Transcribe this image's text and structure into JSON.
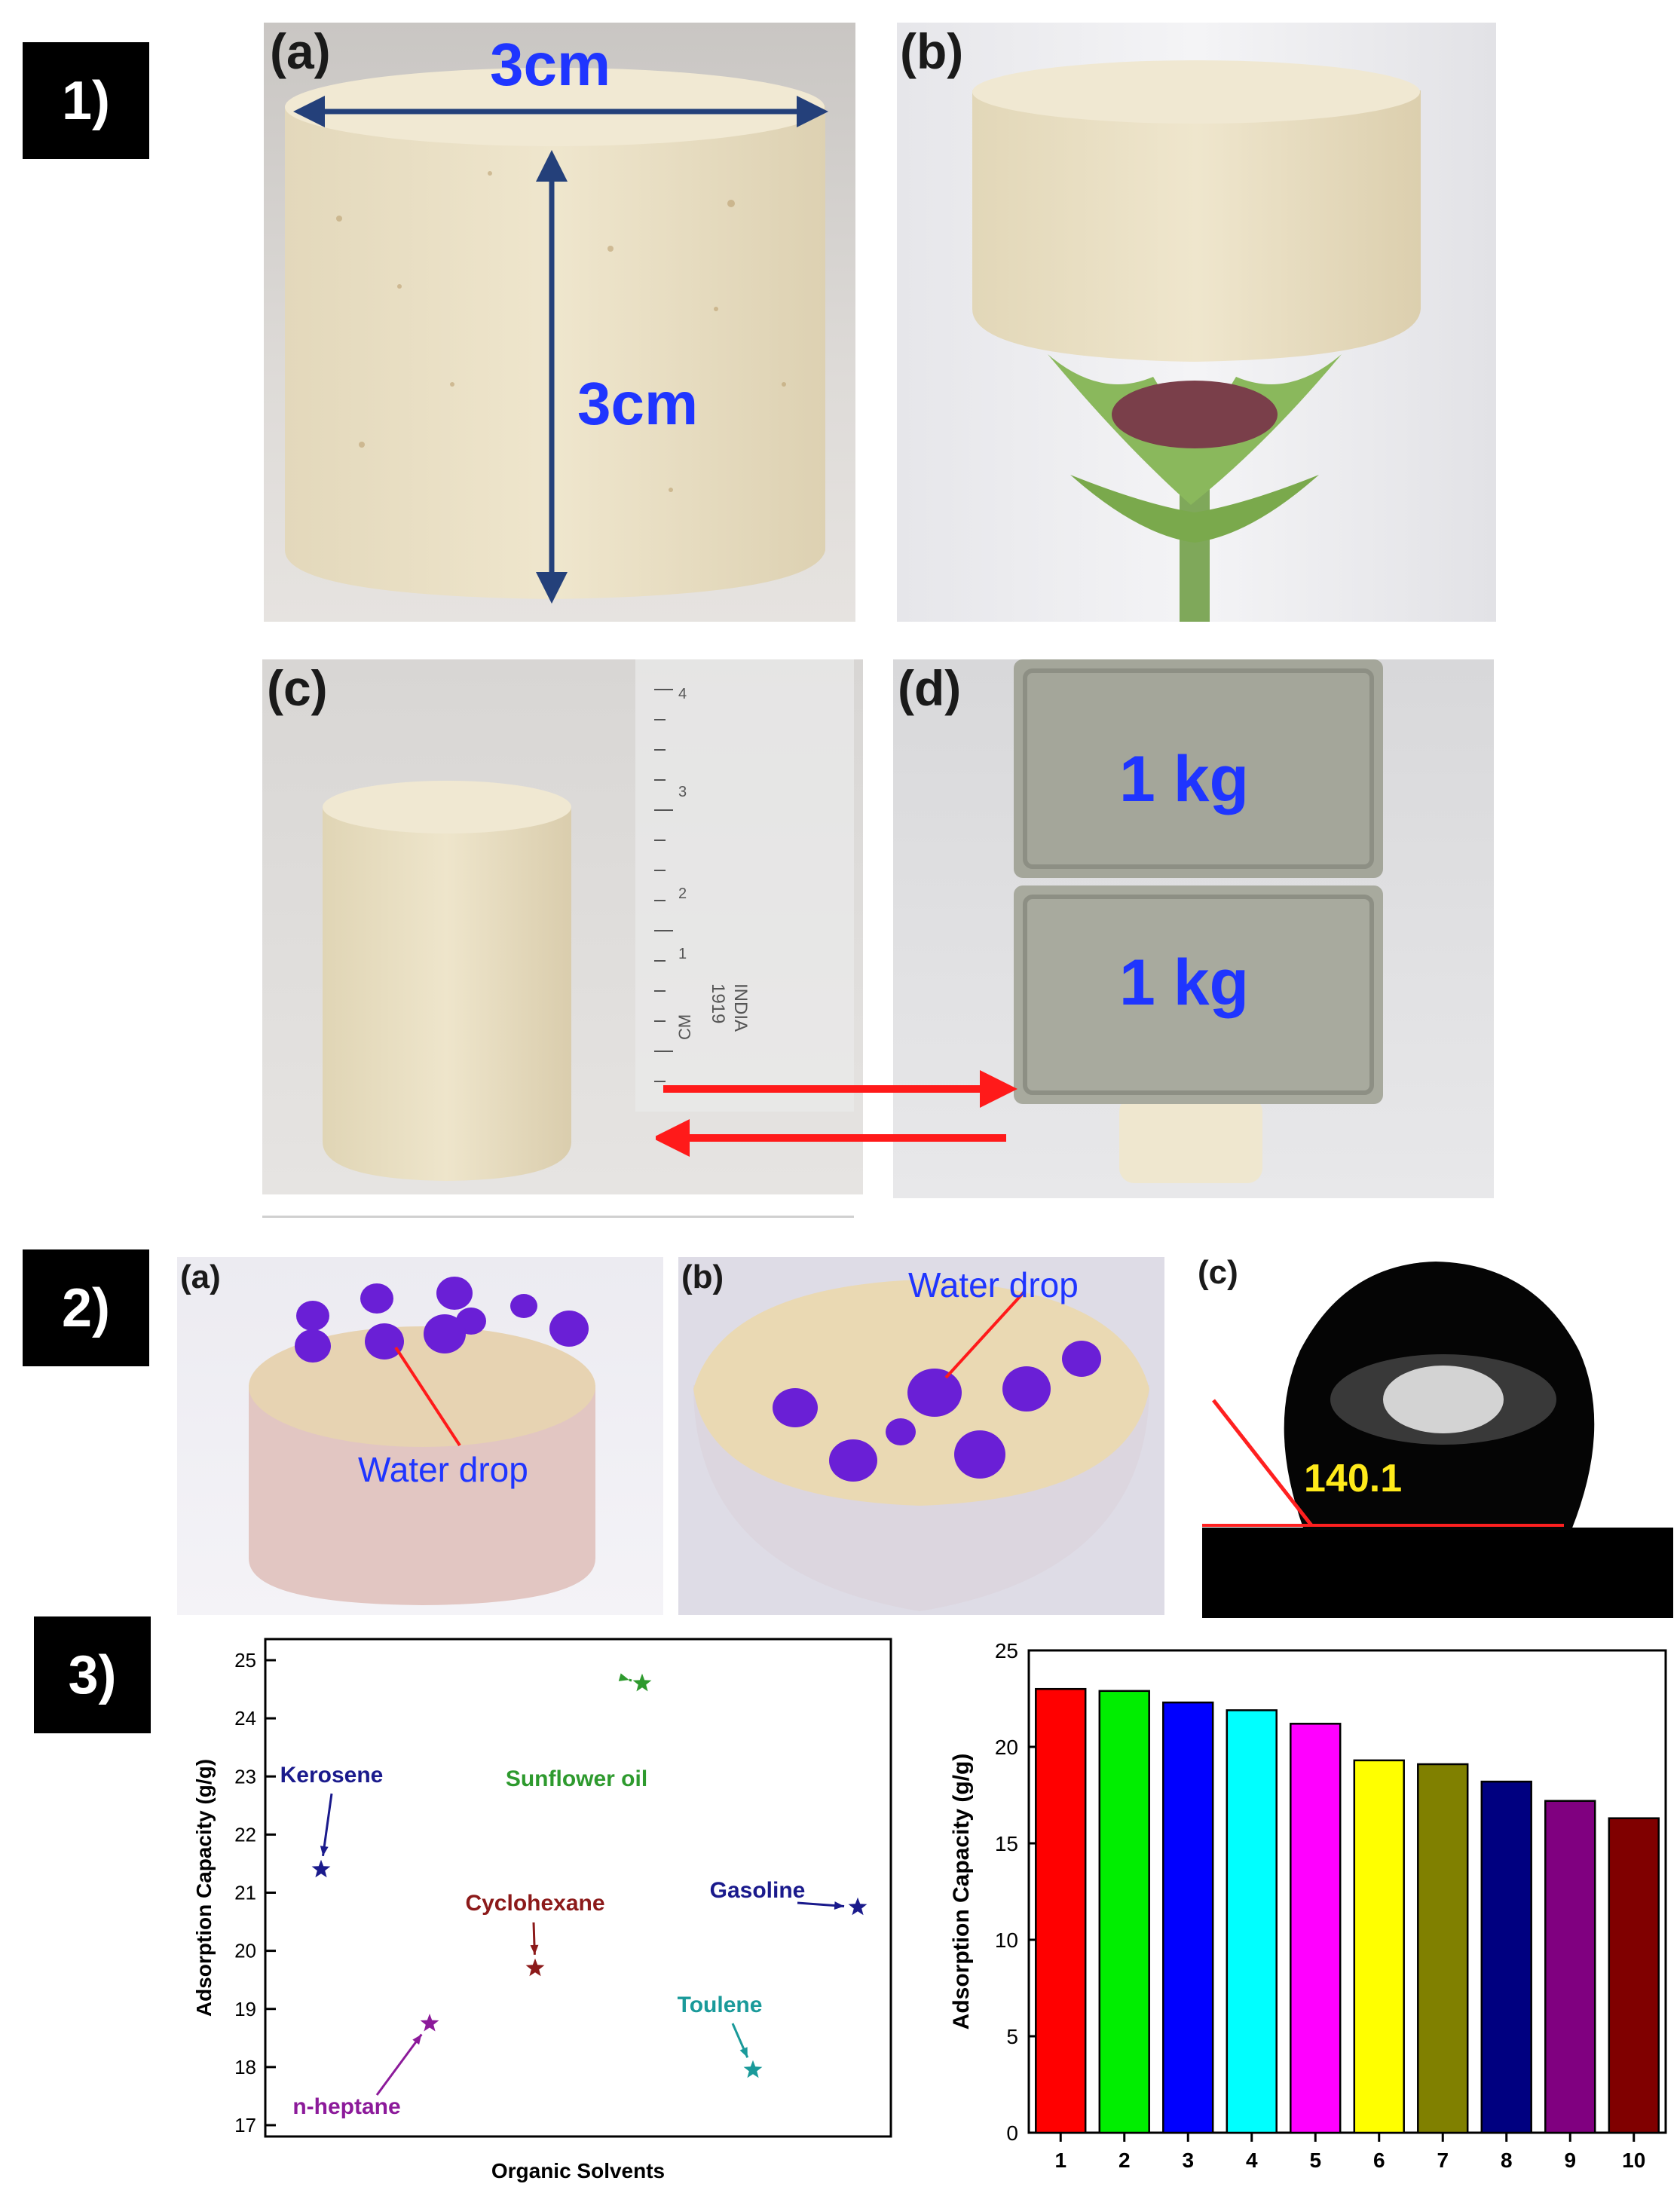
{
  "sections": {
    "s1": "1)",
    "s2": "2)",
    "s3": "3)"
  },
  "panel1": {
    "a": {
      "label": "(a)",
      "width_text": "3cm",
      "height_text": "3cm"
    },
    "b": {
      "label": "(b)"
    },
    "c": {
      "label": "(c)",
      "ruler_cm": "CM",
      "ruler_ticks": [
        "1",
        "2",
        "3",
        "4"
      ],
      "ruler_brand": "1919",
      "ruler_country": "INDIA"
    },
    "d": {
      "label": "(d)",
      "weight_top": "1 kg",
      "weight_bottom": "1 kg"
    }
  },
  "panel2": {
    "a": {
      "label": "(a)",
      "annotation": "Water drop"
    },
    "b": {
      "label": "(b)",
      "annotation": "Water drop"
    },
    "c": {
      "label": "(c)",
      "angle": "140.1"
    }
  },
  "colors": {
    "water_drop": "#6a1fd6",
    "annotation_blue": "#1f35ff",
    "angle_yellow": "#ffea1a",
    "arrow_red": "#ff1a1a",
    "dim_arrow": "#24407a"
  },
  "chart_data": [
    {
      "type": "scatter",
      "xlabel": "Organic Solvents",
      "ylabel": "Adsorption Capacity (g/g)",
      "ylim": [
        17,
        25
      ],
      "yticks": [
        "17",
        "18",
        "19",
        "20",
        "21",
        "22",
        "23",
        "24",
        "25"
      ],
      "series": [
        {
          "name": "Kerosene",
          "y": 21.4,
          "color": "#1a1a8c"
        },
        {
          "name": "Sunflower oil",
          "y": 24.6,
          "color": "#2e9a2e"
        },
        {
          "name": "Cyclohexane",
          "y": 19.7,
          "color": "#8c1a1a"
        },
        {
          "name": "Gasoline",
          "y": 20.75,
          "color": "#1a1a8c"
        },
        {
          "name": "n-heptane",
          "y": 18.75,
          "color": "#8c1a9a"
        },
        {
          "name": "Toulene",
          "y": 17.95,
          "color": "#1a9a9a"
        }
      ]
    },
    {
      "type": "bar",
      "ylabel": "Adsorption Capacity (g/g)",
      "ylim": [
        0,
        25
      ],
      "yticks": [
        "0",
        "5",
        "10",
        "15",
        "20",
        "25"
      ],
      "categories": [
        "1",
        "2",
        "3",
        "4",
        "5",
        "6",
        "7",
        "8",
        "9",
        "10"
      ],
      "values": [
        23.0,
        22.9,
        22.3,
        21.9,
        21.2,
        19.3,
        19.1,
        18.2,
        17.2,
        16.3
      ],
      "colors": [
        "#ff0000",
        "#00ee00",
        "#0000ff",
        "#00ffff",
        "#ff00ff",
        "#ffff00",
        "#808000",
        "#000080",
        "#800080",
        "#800000"
      ]
    }
  ]
}
